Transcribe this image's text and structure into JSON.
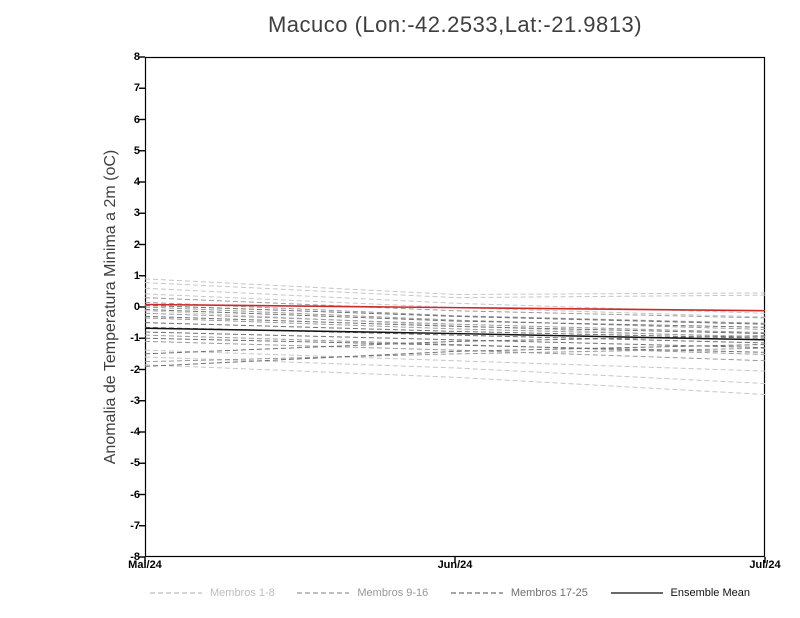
{
  "chart_data": {
    "type": "line",
    "title": "Macuco (Lon:-42.2533,Lat:-21.9813)",
    "ylabel": "Anomalia de Temperatura Minima a 2m (oC)",
    "xlabel": "",
    "ylim": [
      -8,
      8
    ],
    "ytick_step": 1,
    "grid": false,
    "legend_position": "bottom",
    "x_labels": [
      "Mai/24",
      "Jun/24",
      "Jul/24"
    ],
    "x_positions": [
      0,
      0.5,
      1
    ],
    "groups": [
      {
        "name": "Membros 1-8",
        "color": "#c6c6c6",
        "dash": "5,3",
        "width": 1,
        "members": [
          [
            0.9,
            0.4,
            0.45
          ],
          [
            0.78,
            0.3,
            0.38
          ],
          [
            0.6,
            0.12,
            -0.2
          ],
          [
            0.42,
            -0.02,
            -0.32
          ],
          [
            -0.12,
            -0.6,
            -1.0
          ],
          [
            -1.38,
            -1.72,
            -2.05
          ],
          [
            -1.6,
            -1.95,
            -2.45
          ],
          [
            -1.85,
            -2.25,
            -2.8
          ]
        ]
      },
      {
        "name": "Membros 9-16",
        "color": "#9a9a9a",
        "dash": "5,3",
        "width": 1,
        "members": [
          [
            0.3,
            -0.12,
            -0.35
          ],
          [
            0.15,
            -0.28,
            -0.52
          ],
          [
            0.0,
            -0.42,
            -0.72
          ],
          [
            -0.2,
            -0.55,
            -0.82
          ],
          [
            -0.35,
            -0.7,
            -0.95
          ],
          [
            -0.9,
            -1.2,
            -1.52
          ],
          [
            -1.1,
            -1.38,
            -1.72
          ],
          [
            -1.75,
            -1.5,
            -1.32
          ]
        ]
      },
      {
        "name": "Membros 17-25",
        "color": "#6f6f6f",
        "dash": "5,3",
        "width": 1,
        "members": [
          [
            0.05,
            -0.3,
            -0.55
          ],
          [
            -0.08,
            -0.45,
            -0.65
          ],
          [
            -0.3,
            -0.62,
            -0.85
          ],
          [
            -0.5,
            -0.78,
            -1.0
          ],
          [
            -0.65,
            -0.9,
            -1.15
          ],
          [
            -0.8,
            -1.05,
            -1.3
          ],
          [
            -1.0,
            -1.22,
            -1.45
          ],
          [
            -1.5,
            -1.1,
            -0.92
          ],
          [
            -1.9,
            -1.42,
            -1.2
          ]
        ]
      }
    ],
    "series": [
      {
        "name": "Ensemble Mean",
        "color": "#111111",
        "dash": null,
        "width": 1.5,
        "values": [
          -0.68,
          -0.85,
          -1.05
        ]
      },
      {
        "name": "red-line",
        "color": "#cc2a2a",
        "dash": null,
        "width": 1.6,
        "values": [
          0.08,
          -0.02,
          -0.12
        ]
      }
    ],
    "legend": [
      {
        "label": "Membros 1-8",
        "color": "#bdbdbd",
        "dash": true
      },
      {
        "label": "Membros 9-16",
        "color": "#989898",
        "dash": true
      },
      {
        "label": "Membros 17-25",
        "color": "#6f6f6f",
        "dash": true
      },
      {
        "label": "Ensemble Mean",
        "color": "#111111",
        "dash": false
      }
    ]
  }
}
